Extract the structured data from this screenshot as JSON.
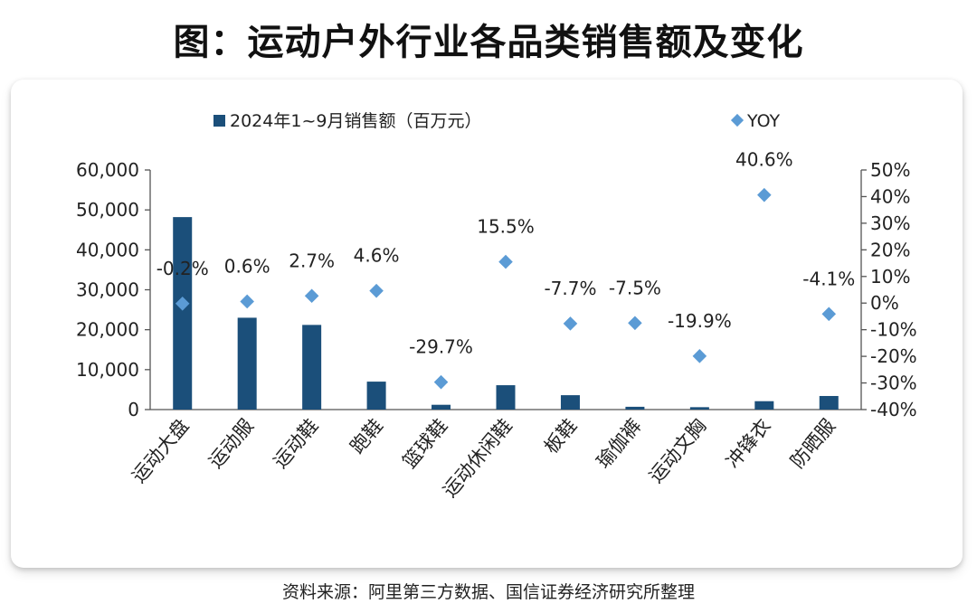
{
  "title": "图：运动户外行业各品类销售额及变化",
  "source": "资料来源：阿里第三方数据、国信证券经济研究所整理",
  "colors": {
    "bar": "#1b4f7a",
    "point": "#5b9bd5",
    "axis": "#555555",
    "text": "#222222"
  },
  "chart_data": {
    "type": "bar",
    "categories": [
      "运动大盘",
      "运动服",
      "运动鞋",
      "跑鞋",
      "篮球鞋",
      "运动休闲鞋",
      "板鞋",
      "瑜伽裤",
      "运动文胸",
      "冲锋衣",
      "防晒服"
    ],
    "series": [
      {
        "name": "2024年1~9月销售额（百万元）",
        "type": "bar",
        "axis": "left",
        "values": [
          48200,
          23000,
          21200,
          7000,
          1200,
          6100,
          3600,
          700,
          600,
          2100,
          3400
        ]
      },
      {
        "name": "YOY",
        "type": "scatter",
        "axis": "right",
        "values": [
          -0.2,
          0.6,
          2.7,
          4.6,
          -29.7,
          15.5,
          -7.7,
          -7.5,
          -19.9,
          40.6,
          -4.1
        ],
        "labels": [
          "-0.2%",
          "0.6%",
          "2.7%",
          "4.6%",
          "-29.7%",
          "15.5%",
          "-7.7%",
          "-7.5%",
          "-19.9%",
          "40.6%",
          "-4.1%"
        ]
      }
    ],
    "y_left": {
      "range": [
        0,
        60000
      ],
      "ticks": [
        0,
        10000,
        20000,
        30000,
        40000,
        50000,
        60000
      ],
      "tick_labels": [
        "0",
        "10,000",
        "20,000",
        "30,000",
        "40,000",
        "50,000",
        "60,000"
      ]
    },
    "y_right": {
      "range": [
        -40,
        50
      ],
      "ticks": [
        -40,
        -30,
        -20,
        -10,
        0,
        10,
        20,
        30,
        40,
        50
      ],
      "tick_labels": [
        "-40%",
        "-30%",
        "-20%",
        "-10%",
        "0%",
        "10%",
        "20%",
        "30%",
        "40%",
        "50%"
      ]
    },
    "legend": [
      "2024年1~9月销售额（百万元）",
      "YOY"
    ],
    "legend_position": "top",
    "grid": false
  }
}
